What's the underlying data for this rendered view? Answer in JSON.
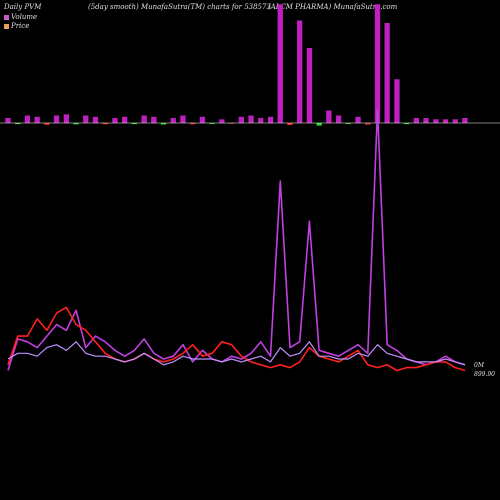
{
  "header": {
    "left": "Daily PVM",
    "middle": "(5day smooth) MunafaSutra(TM) charts for 538573",
    "right": "(ALCM PHARMA) MunafaSutra.com"
  },
  "legend": {
    "volume_label": "Volume",
    "volume_color": "#c060c0",
    "price_label": "Price",
    "price_color": "#e8a060"
  },
  "end_labels": {
    "volume": "0M",
    "price": "899.90"
  },
  "colors": {
    "volume_line": "#c040e0",
    "price_line": "#ff2020",
    "pv_line": "#c090ff",
    "bar_up": "#c020c0",
    "bar_down_red": "#ff2020",
    "bar_down_green": "#20e020",
    "baseline": "#ffffff"
  },
  "chart_data": {
    "type": "line",
    "title": "",
    "xlabel": "",
    "ylabel": "",
    "grid": false,
    "ylim": [
      0,
      100
    ],
    "series": [
      {
        "values": [
          4,
          15,
          14,
          12,
          16,
          20,
          18,
          25,
          12,
          16,
          14,
          11,
          9,
          11,
          15,
          10,
          8,
          9,
          13,
          7,
          11,
          8,
          7,
          9,
          8,
          10,
          14,
          9,
          70,
          12,
          14,
          56,
          11,
          10,
          9,
          11,
          13,
          10,
          95,
          13,
          11,
          8,
          7,
          6,
          7,
          9,
          7,
          6
        ]
      },
      {
        "values": [
          6,
          16,
          16,
          22,
          18,
          24,
          26,
          20,
          18,
          14,
          10,
          8,
          7,
          8,
          10,
          8,
          7,
          8,
          10,
          13,
          9,
          10,
          14,
          13,
          9,
          7,
          6,
          5,
          6,
          5,
          7,
          12,
          9,
          8,
          7,
          9,
          11,
          6,
          5,
          6,
          4,
          5,
          5,
          6,
          7,
          7,
          5,
          4
        ]
      },
      {
        "values": [
          8,
          10,
          10,
          9,
          12,
          13,
          11,
          14,
          10,
          9,
          9,
          8,
          7,
          8,
          10,
          8,
          6,
          7,
          9,
          8,
          8,
          8,
          7,
          8,
          7,
          8,
          9,
          7,
          12,
          9,
          10,
          14,
          9,
          9,
          8,
          8,
          10,
          9,
          13,
          10,
          9,
          8,
          7,
          7,
          7,
          8,
          7,
          6
        ]
      }
    ],
    "bars": [
      4,
      -5,
      6,
      5,
      -8,
      6,
      7,
      -6,
      6,
      5,
      -6,
      4,
      5,
      -5,
      6,
      5,
      -7,
      4,
      6,
      -6,
      5,
      -4,
      3,
      -3,
      5,
      6,
      4,
      5,
      95,
      -9,
      82,
      60,
      -12,
      10,
      6,
      -4,
      5,
      -7,
      95,
      80,
      35,
      -5,
      4,
      4,
      3,
      3,
      3,
      4
    ],
    "bar_down_colors": [
      "green",
      "red",
      "green",
      "red",
      "green",
      "green",
      "red",
      "green",
      "red",
      "red",
      "green",
      "green",
      "red",
      "green",
      "red"
    ]
  }
}
